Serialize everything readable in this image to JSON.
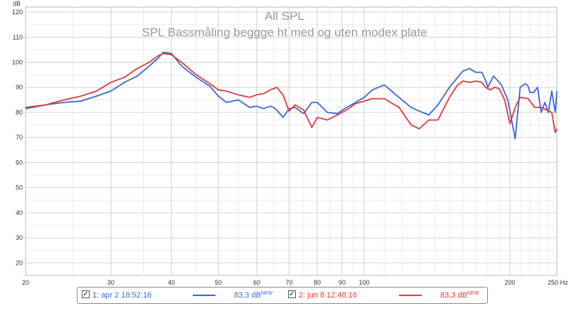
{
  "chart_data": {
    "type": "line",
    "title": "All SPL",
    "subtitle": "SPL Bassmåling beggge ht med og uten modex plate",
    "ylabel": "dB",
    "xunit": "Hz",
    "xscale": "log",
    "xlim": [
      20,
      250
    ],
    "ylim": [
      15,
      122
    ],
    "grid": true,
    "x_ticks": [
      20,
      30,
      40,
      50,
      60,
      70,
      80,
      90,
      100,
      200,
      250
    ],
    "x_tick_labels": [
      "20",
      "30",
      "40",
      "50",
      "60",
      "70",
      "80",
      "90",
      "100",
      "200",
      "250 Hz"
    ],
    "y_ticks": [
      20,
      30,
      40,
      50,
      60,
      70,
      80,
      90,
      100,
      110,
      120
    ],
    "legend_position": "bottom",
    "series": [
      {
        "name": "1: apr 2 18:52:16",
        "color": "#3a68d8",
        "value_label": "83,3 dB",
        "badge": "NEW",
        "x": [
          20,
          22,
          24,
          26,
          28,
          30,
          32,
          34,
          36,
          37.5,
          38.5,
          40,
          42,
          45,
          48,
          50,
          52,
          55,
          58,
          60,
          62,
          64,
          65,
          66,
          68,
          70,
          72,
          75,
          78,
          80,
          84,
          88,
          92,
          96,
          100,
          104,
          110,
          118,
          125,
          130,
          136,
          142,
          150,
          156,
          160,
          165,
          170,
          172,
          175,
          178,
          180,
          185,
          192,
          198,
          205,
          210,
          215,
          218,
          220,
          224,
          228,
          232,
          236,
          240,
          244,
          248,
          250
        ],
        "values": [
          81.5,
          83,
          84,
          84.5,
          86.5,
          88.5,
          92,
          94.5,
          98.5,
          101.5,
          104,
          103.5,
          98.5,
          94,
          90.5,
          86.5,
          84,
          85,
          82,
          82.5,
          81.5,
          82.5,
          82,
          81,
          78,
          81.5,
          82,
          79.5,
          84,
          84,
          80,
          79.5,
          82,
          84,
          86,
          89,
          91,
          86,
          82,
          80.5,
          79,
          83,
          90,
          94,
          96.5,
          97.5,
          96,
          96,
          96,
          93,
          90,
          94.5,
          91,
          85,
          69.5,
          90,
          91.5,
          90.5,
          88,
          88,
          90,
          80,
          84,
          80,
          88.5,
          80,
          88.5
        ]
      },
      {
        "name": "2: jun 8 12:48:16",
        "color": "#e03a3a",
        "value_label": "83,3 dB",
        "badge": "NEW",
        "x": [
          20,
          22,
          24,
          26,
          28,
          30,
          32,
          34,
          36,
          37.5,
          38.5,
          40,
          42,
          45,
          48,
          50,
          52,
          55,
          58,
          60,
          62,
          64,
          65,
          66,
          68,
          70,
          72,
          75,
          78,
          80,
          84,
          88,
          92,
          96,
          100,
          104,
          110,
          118,
          125,
          130,
          136,
          142,
          150,
          156,
          160,
          165,
          170,
          175,
          178,
          182,
          186,
          190,
          195,
          200,
          205,
          210,
          218,
          225,
          232,
          238,
          244,
          248,
          250
        ],
        "values": [
          82,
          83,
          85,
          86.5,
          88.5,
          92,
          94,
          97.5,
          100,
          102.5,
          103.5,
          103,
          100,
          95,
          91.5,
          89,
          88.5,
          87,
          86,
          87,
          87.5,
          89,
          89.5,
          90,
          87,
          80.5,
          83,
          81,
          74,
          78,
          77,
          79,
          81,
          83.5,
          84.5,
          85.5,
          85.5,
          82,
          75,
          73.5,
          77,
          77,
          86,
          91,
          92.5,
          92,
          92.5,
          92,
          90,
          89,
          90,
          89.5,
          85,
          75.5,
          82,
          86,
          85.5,
          82,
          82,
          81,
          80,
          72,
          73.5
        ]
      }
    ]
  }
}
